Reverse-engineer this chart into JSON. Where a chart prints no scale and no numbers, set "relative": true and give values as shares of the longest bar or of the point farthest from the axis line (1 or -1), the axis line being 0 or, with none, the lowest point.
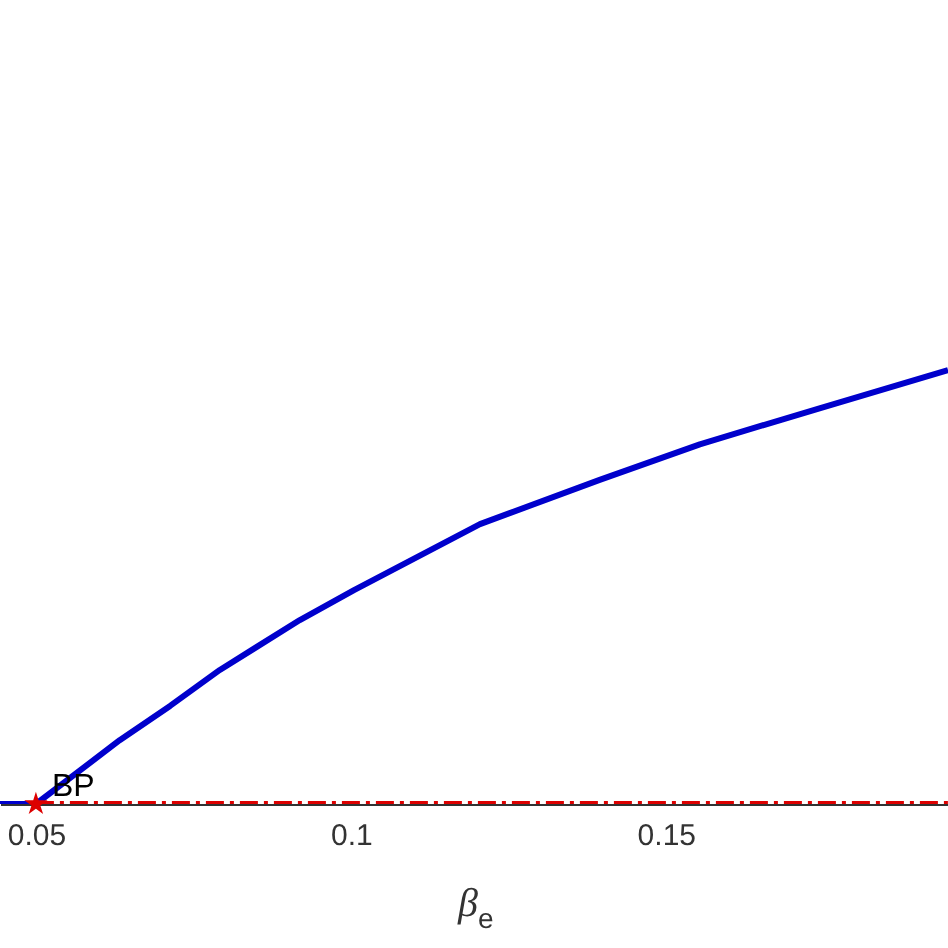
{
  "chart_data": {
    "type": "line",
    "relative": true,
    "xlabel": "β$_{e}$",
    "xlim": [
      0.0443,
      0.1948
    ],
    "xticks": [
      0.05,
      0.1,
      0.15
    ],
    "grid": false,
    "tick_labels": "x",
    "series": [
      {
        "color": "#0000cc",
        "line_style": "solid",
        "marker": "none",
        "x": [
          0.0443,
          0.05,
          0.0633,
          0.0713,
          0.0792,
          0.0919,
          0.1005,
          0.1205,
          0.1395,
          0.1554,
          0.1744,
          0.1948
        ],
        "values": [
          0,
          0,
          0.147,
          0.226,
          0.309,
          0.424,
          0.493,
          0.645,
          0.747,
          0.829,
          0.912,
          1
        ]
      },
      {
        "color": "#dd0000",
        "line_style": "dashed",
        "marker": "none",
        "x": [
          0.05,
          0.1948
        ],
        "values": [
          0,
          0
        ]
      },
      {
        "type": "scatter",
        "name": "BP",
        "color": "#dd0000",
        "marker": "star",
        "x": [
          0.05
        ],
        "values": [
          0
        ]
      }
    ]
  }
}
